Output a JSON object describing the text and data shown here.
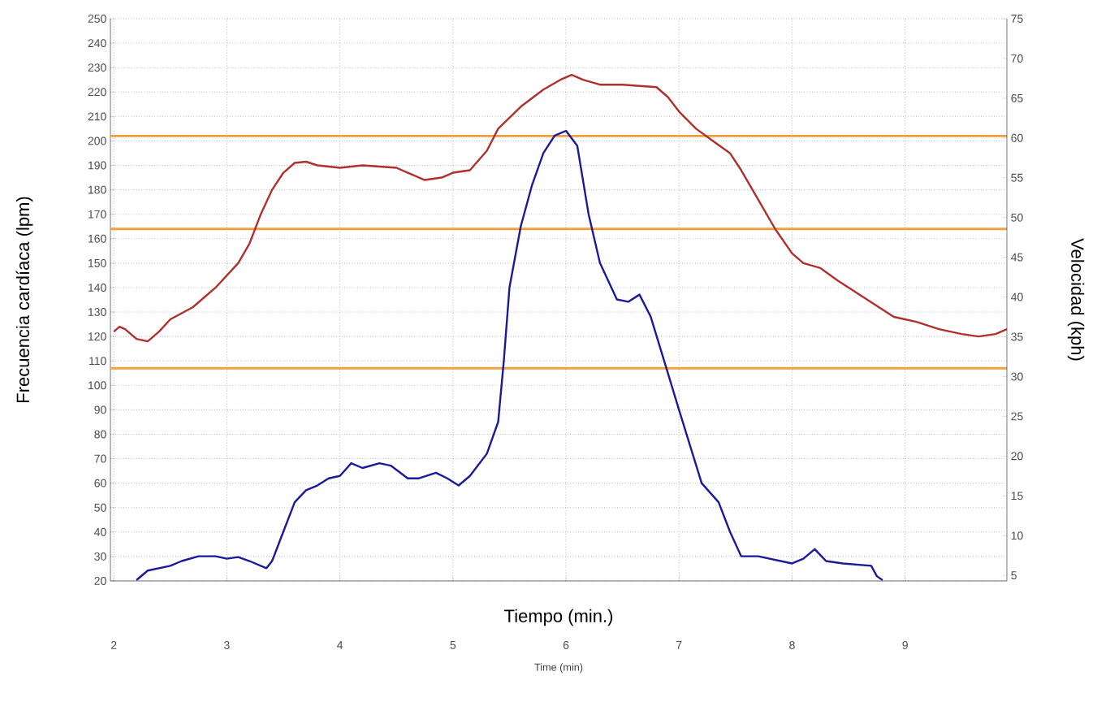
{
  "chart_data": {
    "type": "line",
    "xlabel": "Tiempo (min.)",
    "ylabel": "Frecuencia cardíaca (lpm)",
    "y2label": "Velocidad (kph)",
    "annotations": [
      "Time (min)"
    ],
    "xlim": [
      1.97,
      9.9
    ],
    "xticks": [
      2,
      3,
      4,
      5,
      6,
      7,
      8,
      9
    ],
    "ylim": [
      20,
      250
    ],
    "yticks": [
      20,
      30,
      40,
      50,
      60,
      70,
      80,
      90,
      100,
      110,
      120,
      130,
      140,
      150,
      160,
      170,
      180,
      190,
      200,
      210,
      220,
      230,
      240,
      250
    ],
    "y2lim": [
      4.3,
      75
    ],
    "y2ticks": [
      5,
      10,
      15,
      20,
      25,
      30,
      35,
      40,
      45,
      50,
      55,
      60,
      65,
      70,
      75
    ],
    "grid": true,
    "marker": "none",
    "line_style": "solid",
    "ref_lines": [
      {
        "axis": "y",
        "value": 202,
        "color": "#f0a040"
      },
      {
        "axis": "y",
        "value": 164,
        "color": "#f0a040"
      },
      {
        "axis": "y",
        "value": 107,
        "color": "#f0a040"
      }
    ],
    "series": [
      {
        "color": "#b03030",
        "x": [
          2.0,
          2.05,
          2.1,
          2.2,
          2.3,
          2.4,
          2.5,
          2.7,
          2.9,
          3.1,
          3.2,
          3.3,
          3.4,
          3.5,
          3.6,
          3.7,
          3.8,
          4.0,
          4.2,
          4.5,
          4.6,
          4.75,
          4.9,
          5.0,
          5.15,
          5.3,
          5.4,
          5.6,
          5.8,
          5.95,
          6.05,
          6.15,
          6.3,
          6.5,
          6.8,
          6.9,
          7.0,
          7.15,
          7.3,
          7.45,
          7.55,
          7.7,
          7.85,
          8.0,
          8.1,
          8.25,
          8.4,
          8.5,
          8.7,
          8.9,
          9.1,
          9.3,
          9.5,
          9.65,
          9.8,
          9.9
        ],
        "values": [
          122,
          124,
          123,
          119,
          118,
          122,
          127,
          132,
          140,
          150,
          158,
          170,
          180,
          187,
          191,
          191.5,
          190,
          189,
          190,
          189,
          187,
          184,
          185,
          187,
          188,
          196,
          205,
          214,
          221,
          225,
          227,
          225,
          223,
          223,
          222,
          218,
          212,
          205,
          200,
          195,
          188,
          176,
          164,
          154,
          150,
          148,
          143,
          140,
          134,
          128,
          126,
          123,
          121,
          120,
          121,
          123
        ]
      },
      {
        "color": "#1a1a9a",
        "axis": "y2",
        "x": [
          2.2,
          2.3,
          2.4,
          2.5,
          2.6,
          2.75,
          2.9,
          3.0,
          3.1,
          3.2,
          3.35,
          3.4,
          3.5,
          3.6,
          3.7,
          3.8,
          3.9,
          4.0,
          4.1,
          4.2,
          4.35,
          4.45,
          4.6,
          4.7,
          4.85,
          4.95,
          5.05,
          5.15,
          5.3,
          5.4,
          5.45,
          5.5,
          5.6,
          5.7,
          5.8,
          5.9,
          6.0,
          6.1,
          6.2,
          6.3,
          6.45,
          6.55,
          6.65,
          6.75,
          6.9,
          7.0,
          7.1,
          7.2,
          7.35,
          7.45,
          7.55,
          7.7,
          8.0,
          8.1,
          8.2,
          8.3,
          8.45,
          8.7,
          8.75,
          8.8
        ],
        "values": [
          4.4,
          5.6,
          5.9,
          6.2,
          6.8,
          7.4,
          7.4,
          7.1,
          7.3,
          6.8,
          5.9,
          6.8,
          10.5,
          14.2,
          15.7,
          16.3,
          17.2,
          17.5,
          19.1,
          18.5,
          19.1,
          18.8,
          17.2,
          17.2,
          17.9,
          17.2,
          16.3,
          17.5,
          20.3,
          24.3,
          32.0,
          41.2,
          48.9,
          54.1,
          58.1,
          60.3,
          60.9,
          59.0,
          50.4,
          44.3,
          39.7,
          39.4,
          40.3,
          37.5,
          30.5,
          25.8,
          21.2,
          16.6,
          14.2,
          10.5,
          7.4,
          7.4,
          6.5,
          7.1,
          8.3,
          6.8,
          6.5,
          6.2,
          4.9,
          4.4
        ]
      }
    ]
  }
}
